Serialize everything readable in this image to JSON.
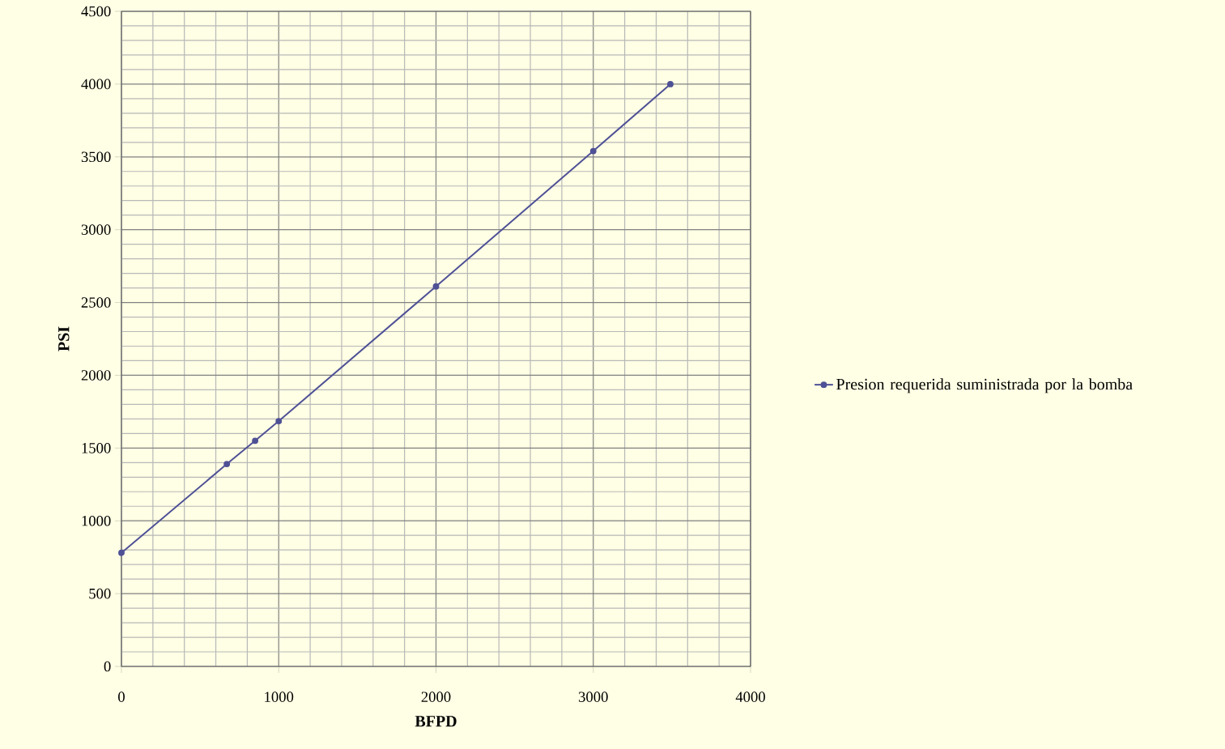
{
  "chart_data": {
    "type": "line",
    "xlabel": "BFPD",
    "ylabel": "PSI",
    "series": [
      {
        "name": "Presion requerida suministrada por la bomba",
        "color": "#4f5196",
        "x": [
          0,
          670,
          850,
          1000,
          2000,
          3000,
          3490
        ],
        "values": [
          780,
          1390,
          1550,
          1685,
          2610,
          3540,
          4000
        ]
      }
    ],
    "xlim": [
      0,
      4000
    ],
    "xticks": [
      0,
      1000,
      2000,
      3000,
      4000
    ],
    "ylim": [
      0,
      4500
    ],
    "yticks": [
      0,
      500,
      1000,
      1500,
      2000,
      2500,
      3000,
      3500,
      4000,
      4500
    ],
    "grid": true,
    "legend": "right",
    "marker": "circle",
    "line_style": "solid"
  }
}
